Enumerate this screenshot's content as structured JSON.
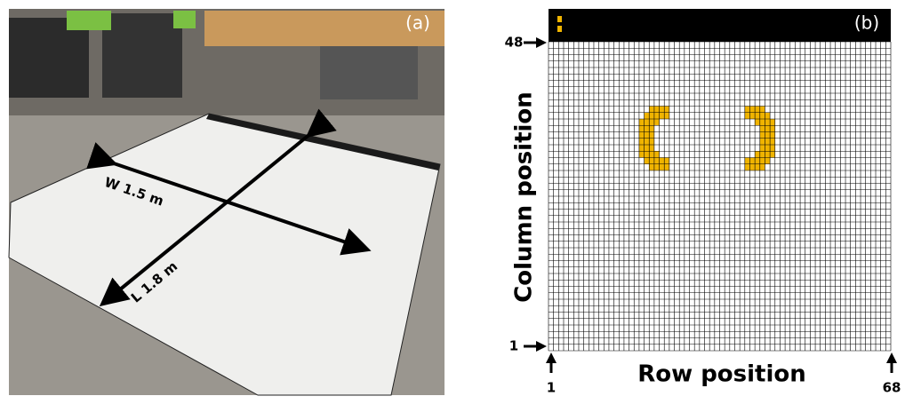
{
  "panel_a": {
    "label": "(a)",
    "width_label": "W 1.5 m",
    "length_label": "L 1.8 m"
  },
  "panel_b": {
    "label": "(b)",
    "y_axis": {
      "title": "Column position",
      "top": 48,
      "bottom": 1
    },
    "x_axis": {
      "title": "Row position",
      "left": 1,
      "right": 68
    }
  }
}
